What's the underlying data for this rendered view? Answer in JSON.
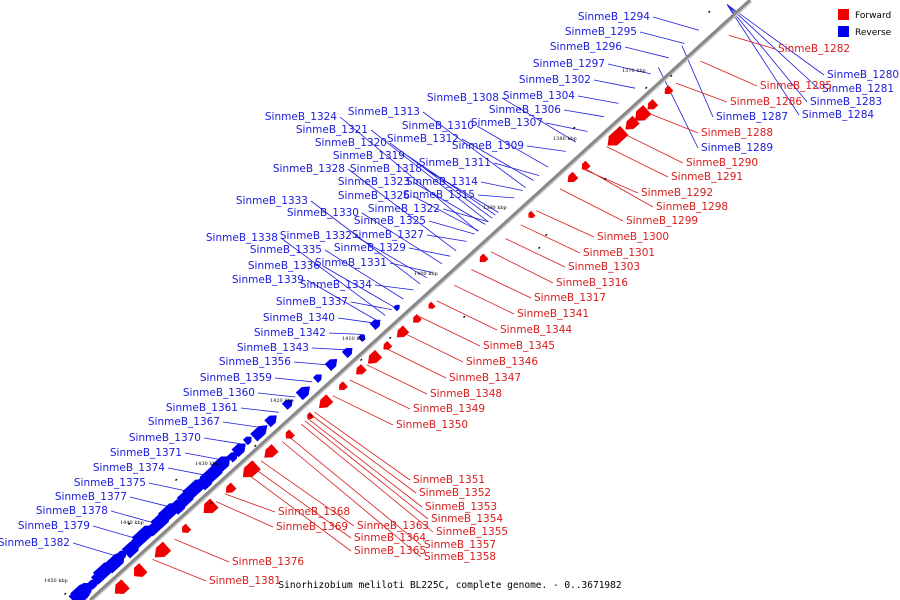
{
  "footer": "Sinorhizobium meliloti BL225C, complete genome. - 0..3671982",
  "legend": [
    {
      "label": "Forward",
      "color": "#ee0000"
    },
    {
      "label": "Reverse",
      "color": "#0000ee"
    }
  ],
  "colors": {
    "forward": "#ee0000",
    "reverse": "#0000ee",
    "backbone": "#888888",
    "label_forward": "#d81c1c",
    "label_reverse": "#1a1adc"
  },
  "backbone": {
    "start_kbp": 1450,
    "end_kbp": 1370
  },
  "ticks": [
    "1370 kbp",
    "1380 kbp",
    "1390 kbp",
    "1400 kbp",
    "1410 kbp",
    "1420 kbp",
    "1430 kbp",
    "1440 kbp",
    "1450 kbp"
  ],
  "reverse_genes": [
    "SinmeB_1280",
    "SinmeB_1281",
    "SinmeB_1283",
    "SinmeB_1284",
    "SinmeB_1287",
    "SinmeB_1289",
    "SinmeB_1294",
    "SinmeB_1295",
    "SinmeB_1296",
    "SinmeB_1297",
    "SinmeB_1302",
    "SinmeB_1304",
    "SinmeB_1306",
    "SinmeB_1307",
    "SinmeB_1308",
    "SinmeB_1309",
    "SinmeB_1310",
    "SinmeB_1311",
    "SinmeB_1312",
    "SinmeB_1313",
    "SinmeB_1314",
    "SinmeB_1315",
    "SinmeB_1318",
    "SinmeB_1319",
    "SinmeB_1320",
    "SinmeB_1321",
    "SinmeB_1322",
    "SinmeB_1323",
    "SinmeB_1324",
    "SinmeB_1325",
    "SinmeB_1326",
    "SinmeB_1327",
    "SinmeB_1328",
    "SinmeB_1329",
    "SinmeB_1330",
    "SinmeB_1331",
    "SinmeB_1332",
    "SinmeB_1333",
    "SinmeB_1334",
    "SinmeB_1335",
    "SinmeB_1336",
    "SinmeB_1337",
    "SinmeB_1338",
    "SinmeB_1339",
    "SinmeB_1340",
    "SinmeB_1342",
    "SinmeB_1343",
    "SinmeB_1356",
    "SinmeB_1359",
    "SinmeB_1360",
    "SinmeB_1361",
    "SinmeB_1367",
    "SinmeB_1370",
    "SinmeB_1371",
    "SinmeB_1374",
    "SinmeB_1375",
    "SinmeB_1377",
    "SinmeB_1378",
    "SinmeB_1379",
    "SinmeB_1382"
  ],
  "forward_genes": [
    "SinmeB_1282",
    "SinmeB_1285",
    "SinmeB_1286",
    "SinmeB_1288",
    "SinmeB_1290",
    "SinmeB_1291",
    "SinmeB_1292",
    "SinmeB_1298",
    "SinmeB_1299",
    "SinmeB_1300",
    "SinmeB_1301",
    "SinmeB_1303",
    "SinmeB_1316",
    "SinmeB_1317",
    "SinmeB_1341",
    "SinmeB_1344",
    "SinmeB_1345",
    "SinmeB_1346",
    "SinmeB_1347",
    "SinmeB_1348",
    "SinmeB_1349",
    "SinmeB_1350",
    "SinmeB_1351",
    "SinmeB_1352",
    "SinmeB_1353",
    "SinmeB_1354",
    "SinmeB_1355",
    "SinmeB_1357",
    "SinmeB_1358",
    "SinmeB_1363",
    "SinmeB_1364",
    "SinmeB_1365",
    "SinmeB_1368",
    "SinmeB_1369",
    "SinmeB_1376",
    "SinmeB_1381"
  ]
}
